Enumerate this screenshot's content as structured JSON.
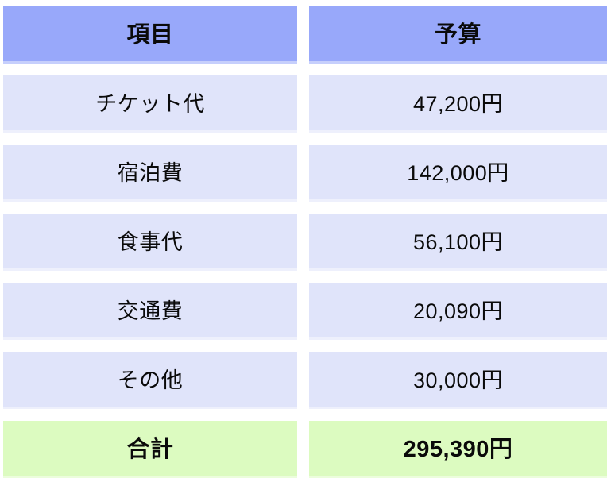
{
  "chart_data": {
    "type": "table",
    "columns": [
      "項目",
      "予算"
    ],
    "rows": [
      {
        "item": "チケット代",
        "budget": "47,200円",
        "budget_value": 47200
      },
      {
        "item": "宿泊費",
        "budget": "142,000円",
        "budget_value": 142000
      },
      {
        "item": "食事代",
        "budget": "56,100円",
        "budget_value": 56100
      },
      {
        "item": "交通費",
        "budget": "20,090円",
        "budget_value": 20090
      },
      {
        "item": "その他",
        "budget": "30,000円",
        "budget_value": 30000
      }
    ],
    "total": {
      "item": "合計",
      "budget": "295,390円",
      "budget_value": 295390
    },
    "layout": {
      "columns_count": 2,
      "grid": "gapped-cells",
      "header_position": "top",
      "total_position": "bottom"
    }
  },
  "colors": {
    "header_bg": "#98A8FA",
    "row_bg": "#E0E4FA",
    "total_bg": "#DCFBC0",
    "gap": "#FFFFFF",
    "text": "#0A0A0A"
  }
}
